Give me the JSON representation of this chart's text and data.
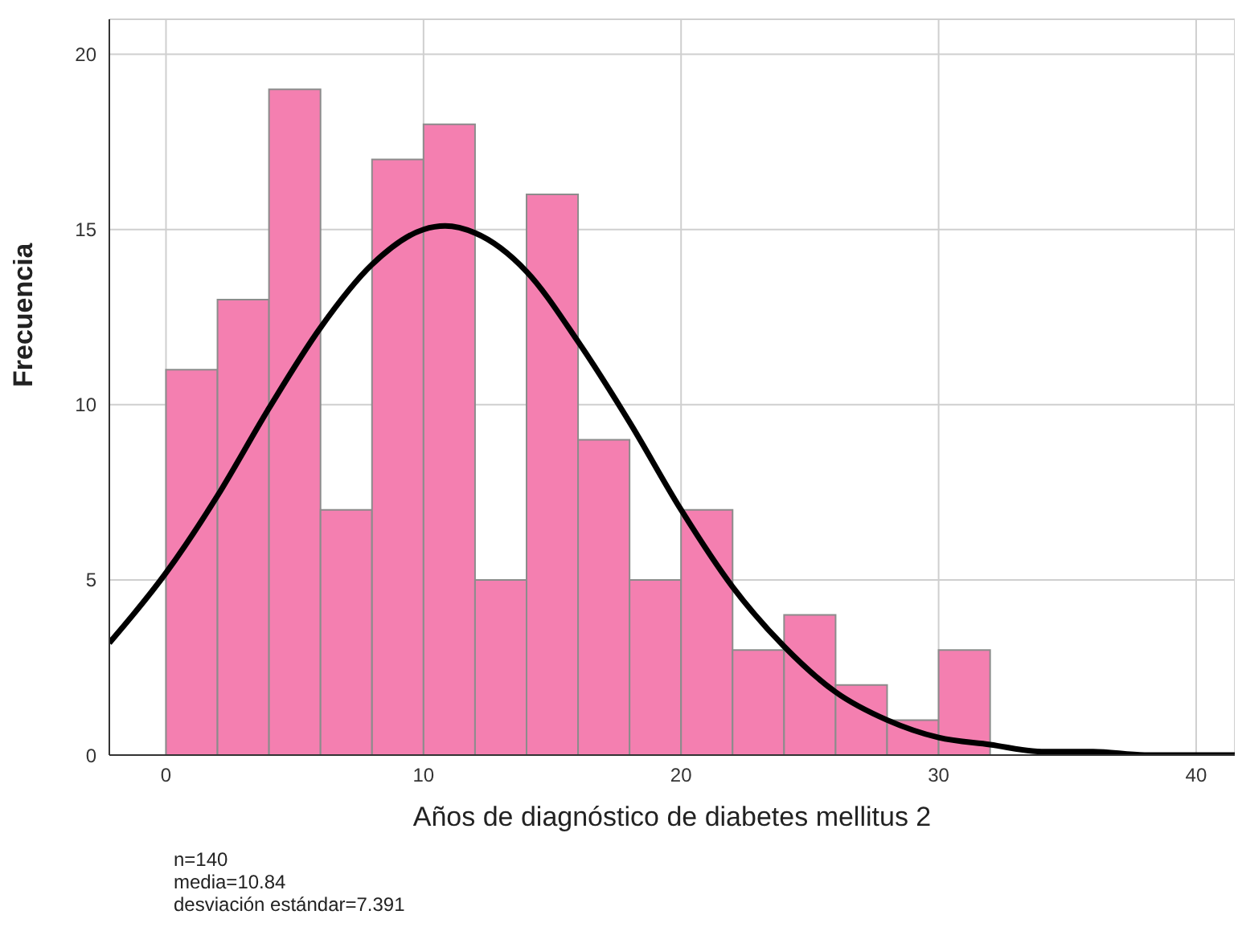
{
  "chart_data": {
    "type": "histogram",
    "xlabel": "Años de diagnóstico de diabetes mellitus 2",
    "ylabel": "Frecuencia",
    "bins": [
      0,
      2,
      4,
      6,
      8,
      10,
      12,
      14,
      16,
      18,
      20,
      22,
      24,
      26,
      28,
      30,
      32
    ],
    "values": [
      11,
      13,
      19,
      7,
      17,
      18,
      5,
      16,
      9,
      5,
      7,
      3,
      4,
      2,
      1,
      3
    ],
    "color": "#f47fb0",
    "series": [
      {
        "type": "line",
        "color": "#000000",
        "x": [
          -2.2,
          0,
          2,
          4,
          6,
          8,
          10,
          10.84,
          12,
          14,
          16,
          18,
          20,
          22,
          24,
          26,
          28,
          30,
          32,
          34,
          36,
          38,
          41.5
        ],
        "values": [
          3.2,
          5.2,
          7.4,
          9.9,
          12.2,
          14.0,
          15.0,
          15.1,
          14.9,
          13.8,
          11.8,
          9.5,
          7.0,
          4.8,
          3.1,
          1.8,
          1.0,
          0.5,
          0.3,
          0.1,
          0.1,
          0.0,
          0.0
        ]
      }
    ],
    "xlim": [
      -2.2,
      41.5
    ],
    "ylim": [
      0,
      21
    ],
    "xticks": [
      0,
      10,
      20,
      30,
      40
    ],
    "yticks": [
      0,
      5,
      10,
      15,
      20
    ],
    "grid": true,
    "marker": "none",
    "annotations": [
      "n=140",
      "media=10.84",
      "desviación estándar=7.391"
    ]
  }
}
